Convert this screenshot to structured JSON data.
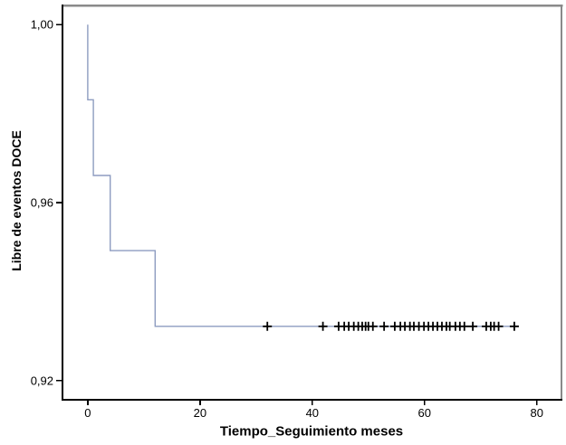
{
  "chart_data": {
    "type": "line",
    "subtype": "kaplan_meier_step",
    "title": "",
    "xlabel": "Tiempo_Seguimiento meses",
    "ylabel": "Libre de eventos DOCE",
    "xlim": [
      -4.5,
      84.4
    ],
    "ylim": [
      0.9157,
      1.0043
    ],
    "grid": false,
    "legend": false,
    "x_ticks": [
      {
        "value": 0,
        "label": "0"
      },
      {
        "value": 20,
        "label": "20"
      },
      {
        "value": 40,
        "label": "40"
      },
      {
        "value": 60,
        "label": "60"
      },
      {
        "value": 80,
        "label": "80"
      }
    ],
    "y_ticks": [
      {
        "value": 1.0,
        "label": "1,00"
      },
      {
        "value": 0.96,
        "label": "0,96"
      },
      {
        "value": 0.92,
        "label": "0,92"
      }
    ],
    "series": [
      {
        "name": "survival-curve",
        "step_points": [
          [
            0,
            1.0
          ],
          [
            0,
            0.9831
          ],
          [
            1,
            0.9831
          ],
          [
            1,
            0.9661
          ],
          [
            4,
            0.9661
          ],
          [
            4,
            0.9492
          ],
          [
            12,
            0.9492
          ],
          [
            12,
            0.9322
          ],
          [
            76.3,
            0.9322
          ]
        ],
        "event_times": [
          0,
          1,
          4,
          12
        ],
        "censored_survival": 0.9322,
        "censored_times": [
          32.0,
          41.9,
          44.7,
          45.7,
          46.5,
          47.4,
          48.2,
          48.9,
          49.5,
          50.0,
          50.8,
          52.8,
          54.7,
          55.7,
          56.5,
          57.4,
          58.1,
          59.0,
          59.9,
          60.7,
          61.5,
          62.3,
          63.1,
          63.9,
          64.5,
          65.5,
          66.3,
          67.1,
          68.6,
          71.0,
          71.8,
          72.4,
          73.2,
          76.0
        ]
      }
    ],
    "colors": {
      "curve": "#8d9cc0",
      "censor_mark": "#000000",
      "axis": "#000000",
      "frame": "#8a8a8a",
      "background": "#ffffff",
      "text": "#000000"
    }
  }
}
